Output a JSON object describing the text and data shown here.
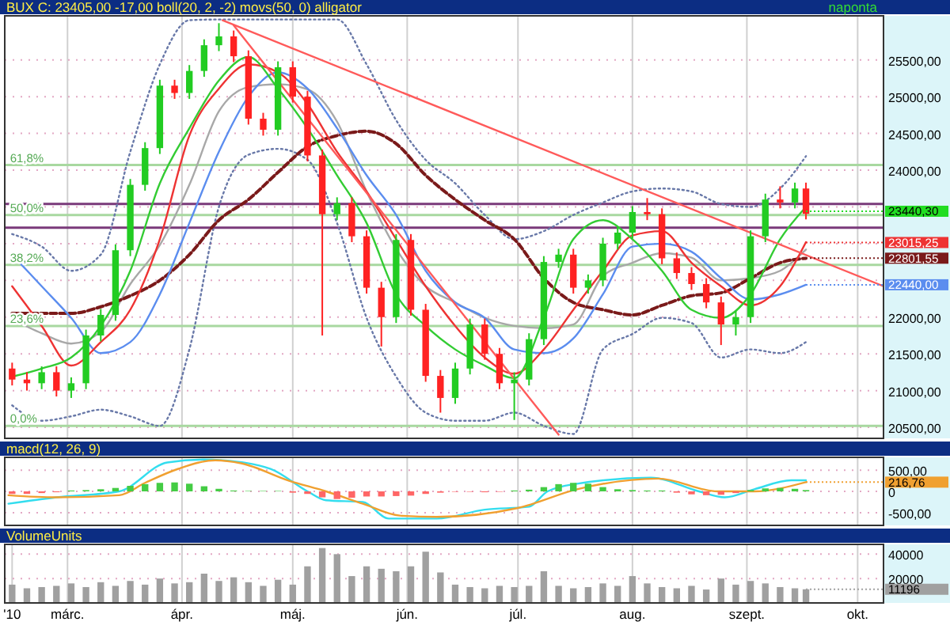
{
  "chart_data": [
    {
      "type": "candlestick",
      "title": "BUX C: 23405,00 -17,00 boll(20, 2, -2) movs(50, 0) alligator",
      "x": [
        "2010-02-14",
        "2010-02-18",
        "2010-02-22",
        "2010-02-26",
        "2010-03-02",
        "2010-03-06",
        "2010-03-10",
        "2010-03-14",
        "2010-03-18",
        "2010-03-22",
        "2010-03-26",
        "2010-03-30",
        "2010-04-03",
        "2010-04-07",
        "2010-04-11",
        "2010-04-15",
        "2010-04-19",
        "2010-04-23",
        "2010-04-27",
        "2010-05-01",
        "2010-05-05",
        "2010-05-09",
        "2010-05-13",
        "2010-05-17",
        "2010-05-21",
        "2010-05-25",
        "2010-05-29",
        "2010-06-02",
        "2010-06-06",
        "2010-06-10",
        "2010-06-14",
        "2010-06-18",
        "2010-06-22",
        "2010-06-26",
        "2010-06-30",
        "2010-07-04",
        "2010-07-08",
        "2010-07-12",
        "2010-07-16",
        "2010-07-20",
        "2010-07-24",
        "2010-07-28",
        "2010-08-01",
        "2010-08-05",
        "2010-08-09",
        "2010-08-13",
        "2010-08-17",
        "2010-08-21",
        "2010-08-25",
        "2010-08-29",
        "2010-09-02",
        "2010-09-06",
        "2010-09-10",
        "2010-09-14",
        "2010-09-17"
      ],
      "ohlc": [
        [
          21300,
          21380,
          21070,
          21150
        ],
        [
          21150,
          21250,
          21000,
          21100
        ],
        [
          21100,
          21330,
          21020,
          21250
        ],
        [
          21250,
          21330,
          20920,
          21000
        ],
        [
          21000,
          21180,
          20900,
          21100
        ],
        [
          21100,
          21830,
          21020,
          21750
        ],
        [
          21750,
          22110,
          21670,
          22030
        ],
        [
          22030,
          22990,
          21950,
          22910
        ],
        [
          22910,
          23880,
          22830,
          23800
        ],
        [
          23800,
          24380,
          23720,
          24300
        ],
        [
          24300,
          25230,
          24220,
          25150
        ],
        [
          25150,
          25230,
          24970,
          25050
        ],
        [
          25050,
          25430,
          24970,
          25350
        ],
        [
          25350,
          25780,
          25270,
          25700
        ],
        [
          25700,
          26000,
          25620,
          25820
        ],
        [
          25820,
          25900,
          25470,
          25550
        ],
        [
          25550,
          25630,
          24620,
          24700
        ],
        [
          24700,
          24780,
          24470,
          24550
        ],
        [
          24550,
          25480,
          24470,
          25400
        ],
        [
          25400,
          25480,
          24920,
          25000
        ],
        [
          25000,
          25080,
          24120,
          24200
        ],
        [
          24200,
          24280,
          21750,
          23400
        ],
        [
          23400,
          23630,
          23320,
          23550
        ],
        [
          23550,
          23630,
          23020,
          23100
        ],
        [
          23100,
          23180,
          22320,
          22400
        ],
        [
          22400,
          22480,
          21600,
          22000
        ],
        [
          22000,
          23130,
          21920,
          23050
        ],
        [
          23050,
          23130,
          22020,
          22100
        ],
        [
          22100,
          22180,
          21120,
          21200
        ],
        [
          21200,
          21280,
          20700,
          20900
        ],
        [
          20900,
          21380,
          20820,
          21300
        ],
        [
          21300,
          21980,
          21220,
          21900
        ],
        [
          21900,
          21980,
          21420,
          21500
        ],
        [
          21500,
          21580,
          21020,
          21100
        ],
        [
          21100,
          21250,
          20600,
          21150
        ],
        [
          21150,
          21780,
          21070,
          21700
        ],
        [
          21700,
          22830,
          21620,
          22750
        ],
        [
          22750,
          22930,
          22670,
          22850
        ],
        [
          22850,
          22930,
          22320,
          22400
        ],
        [
          22400,
          22580,
          22320,
          22500
        ],
        [
          22500,
          23080,
          22420,
          23000
        ],
        [
          23000,
          23230,
          22920,
          23150
        ],
        [
          23150,
          23510,
          23070,
          23430
        ],
        [
          23430,
          23620,
          23320,
          23400
        ],
        [
          23400,
          23480,
          22720,
          22800
        ],
        [
          22800,
          22880,
          22520,
          22600
        ],
        [
          22600,
          22680,
          22370,
          22450
        ],
        [
          22450,
          22530,
          22120,
          22200
        ],
        [
          22200,
          22280,
          21620,
          21900
        ],
        [
          21900,
          22080,
          21750,
          22000
        ],
        [
          22000,
          23180,
          21920,
          23100
        ],
        [
          23100,
          23680,
          23020,
          23600
        ],
        [
          23600,
          23780,
          23480,
          23560
        ],
        [
          23560,
          23830,
          23480,
          23750
        ],
        [
          23750,
          23830,
          23330,
          23405
        ]
      ],
      "series": [
        {
          "type": "line",
          "color": "#6878a8",
          "line_style": "dotted",
          "x": [
            "2010-02-14",
            "2010-02-22",
            "2010-03-02",
            "2010-03-10",
            "2010-03-18",
            "2010-03-26",
            "2010-04-03",
            "2010-04-11",
            "2010-04-19",
            "2010-04-27",
            "2010-05-05",
            "2010-05-13",
            "2010-05-21",
            "2010-05-29",
            "2010-06-06",
            "2010-06-14",
            "2010-06-22",
            "2010-06-30",
            "2010-07-08",
            "2010-07-16",
            "2010-07-24",
            "2010-08-01",
            "2010-08-09",
            "2010-08-17",
            "2010-08-25",
            "2010-09-02",
            "2010-09-10",
            "2010-09-17"
          ],
          "values": [
            23130,
            22960,
            22630,
            22850,
            24250,
            25440,
            26040,
            26050,
            26050,
            26050,
            26050,
            26050,
            25440,
            24680,
            24140,
            23820,
            23390,
            23060,
            23170,
            23390,
            23560,
            23710,
            23750,
            23710,
            23540,
            23500,
            23750,
            24190
          ]
        },
        {
          "type": "line",
          "color": "#a8a8a8",
          "x": [
            "2010-02-14",
            "2010-02-22",
            "2010-03-02",
            "2010-03-10",
            "2010-03-18",
            "2010-03-26",
            "2010-04-03",
            "2010-04-11",
            "2010-04-19",
            "2010-04-27",
            "2010-05-05",
            "2010-05-13",
            "2010-05-21",
            "2010-05-29",
            "2010-06-06",
            "2010-06-14",
            "2010-06-22",
            "2010-06-30",
            "2010-07-08",
            "2010-07-16",
            "2010-07-24",
            "2010-08-01",
            "2010-08-09",
            "2010-08-17",
            "2010-08-25",
            "2010-09-02",
            "2010-09-10",
            "2010-09-17"
          ],
          "values": [
            21970,
            21780,
            21640,
            21800,
            22450,
            22980,
            23800,
            24800,
            25130,
            25170,
            25100,
            24660,
            23710,
            22930,
            22420,
            22200,
            21990,
            21880,
            21850,
            21900,
            22560,
            22740,
            22870,
            22810,
            22500,
            22530,
            22630,
            22920
          ]
        },
        {
          "type": "line",
          "color": "#6878a8",
          "line_style": "dotted",
          "x": [
            "2010-02-14",
            "2010-02-22",
            "2010-03-02",
            "2010-03-10",
            "2010-03-18",
            "2010-03-26",
            "2010-04-03",
            "2010-04-11",
            "2010-04-19",
            "2010-04-27",
            "2010-05-05",
            "2010-05-13",
            "2010-05-21",
            "2010-05-29",
            "2010-06-06",
            "2010-06-14",
            "2010-06-22",
            "2010-06-30",
            "2010-07-08",
            "2010-07-16",
            "2010-07-24",
            "2010-08-01",
            "2010-08-09",
            "2010-08-17",
            "2010-08-25",
            "2010-09-02",
            "2010-09-10",
            "2010-09-17"
          ],
          "values": [
            20800,
            20590,
            20650,
            20740,
            20650,
            20520,
            21560,
            23500,
            24210,
            24290,
            24140,
            23280,
            21990,
            21190,
            20700,
            20590,
            20590,
            20700,
            20520,
            20410,
            21560,
            21770,
            21990,
            21920,
            21450,
            21560,
            21510,
            21660
          ]
        },
        {
          "type": "line",
          "color": "#7a1a1a",
          "line_style": "dashed",
          "x": [
            "2010-02-14",
            "2010-02-22",
            "2010-03-02",
            "2010-03-10",
            "2010-03-18",
            "2010-03-26",
            "2010-04-03",
            "2010-04-11",
            "2010-04-19",
            "2010-04-27",
            "2010-05-05",
            "2010-05-13",
            "2010-05-21",
            "2010-05-29",
            "2010-06-06",
            "2010-06-14",
            "2010-06-22",
            "2010-06-30",
            "2010-07-08",
            "2010-07-16",
            "2010-07-24",
            "2010-08-01",
            "2010-08-09",
            "2010-08-17",
            "2010-08-25",
            "2010-09-02",
            "2010-09-10",
            "2010-09-17"
          ],
          "values": [
            22050,
            22050,
            22050,
            22140,
            22290,
            22500,
            22850,
            23320,
            23600,
            23970,
            24320,
            24470,
            24530,
            24360,
            23930,
            23600,
            23320,
            23060,
            22530,
            22200,
            22100,
            22030,
            22160,
            22290,
            22330,
            22530,
            22740,
            22800
          ]
        },
        {
          "type": "line",
          "color": "#5b8def",
          "x": [
            "2010-02-14",
            "2010-02-22",
            "2010-03-02",
            "2010-03-10",
            "2010-03-18",
            "2010-03-26",
            "2010-04-03",
            "2010-04-11",
            "2010-04-19",
            "2010-04-27",
            "2010-05-05",
            "2010-05-13",
            "2010-05-21",
            "2010-05-29",
            "2010-06-06",
            "2010-06-14",
            "2010-06-22",
            "2010-06-30",
            "2010-07-08",
            "2010-07-16",
            "2010-07-24",
            "2010-08-01",
            "2010-08-09",
            "2010-08-17",
            "2010-08-25",
            "2010-09-02",
            "2010-09-10",
            "2010-09-17"
          ],
          "values": [
            22850,
            22420,
            21990,
            21510,
            21660,
            22310,
            23280,
            24250,
            25000,
            25330,
            25110,
            24570,
            23930,
            23390,
            22630,
            22200,
            21990,
            21560,
            21510,
            21710,
            22310,
            22960,
            23000,
            22890,
            22530,
            22240,
            22310,
            22440
          ]
        },
        {
          "type": "line",
          "color": "#ee3333",
          "x": [
            "2010-02-14",
            "2010-02-22",
            "2010-03-02",
            "2010-03-10",
            "2010-03-18",
            "2010-03-26",
            "2010-04-03",
            "2010-04-11",
            "2010-04-19",
            "2010-04-27",
            "2010-05-05",
            "2010-05-13",
            "2010-05-21",
            "2010-05-29",
            "2010-06-06",
            "2010-06-14",
            "2010-06-22",
            "2010-06-30",
            "2010-07-08",
            "2010-07-16",
            "2010-07-24",
            "2010-08-01",
            "2010-08-09",
            "2010-08-17",
            "2010-08-25",
            "2010-09-02",
            "2010-09-10",
            "2010-09-17"
          ],
          "values": [
            22420,
            21880,
            21340,
            21660,
            22100,
            23060,
            24470,
            25110,
            25440,
            25330,
            24900,
            24250,
            23710,
            23060,
            22420,
            21880,
            21450,
            21230,
            21560,
            22100,
            22630,
            23110,
            23170,
            22740,
            22420,
            22160,
            22420,
            23020
          ]
        },
        {
          "type": "line",
          "color": "#33cc33",
          "x": [
            "2010-02-14",
            "2010-02-22",
            "2010-03-02",
            "2010-03-10",
            "2010-03-18",
            "2010-03-26",
            "2010-04-03",
            "2010-04-11",
            "2010-04-19",
            "2010-04-27",
            "2010-05-05",
            "2010-05-13",
            "2010-05-21",
            "2010-05-29",
            "2010-06-06",
            "2010-06-14",
            "2010-06-22",
            "2010-06-30",
            "2010-07-08",
            "2010-07-16",
            "2010-07-24",
            "2010-08-01",
            "2010-08-09",
            "2010-08-17",
            "2010-08-25",
            "2010-09-02",
            "2010-09-10",
            "2010-09-17"
          ],
          "values": [
            21190,
            21300,
            21450,
            21880,
            22630,
            23820,
            24570,
            25220,
            25540,
            25110,
            24570,
            23930,
            23280,
            22310,
            21880,
            21560,
            21340,
            21170,
            21990,
            23060,
            23320,
            23060,
            22630,
            22100,
            21990,
            22310,
            23060,
            23500
          ]
        },
        {
          "type": "line",
          "color": "#ff5a5a",
          "x": [
            "2010-04-12",
            "2010-10-08"
          ],
          "values": [
            26040,
            22420
          ]
        },
        {
          "type": "line",
          "color": "#ff5a5a",
          "x": [
            "2010-04-15",
            "2010-07-12"
          ],
          "values": [
            25970,
            20400
          ]
        }
      ],
      "xlim": [
        "2010-02-12",
        "2010-10-08"
      ],
      "xticks": [
        {
          "value": "2010-03-01",
          "label": null
        },
        {
          "value": "2010-04-01",
          "label": null
        },
        {
          "value": "2010-05-01",
          "label": null
        },
        {
          "value": "2010-06-01",
          "label": null
        },
        {
          "value": "2010-07-01",
          "label": null
        },
        {
          "value": "2010-08-01",
          "label": null
        },
        {
          "value": "2010-09-01",
          "label": null
        },
        {
          "value": "2010-10-01",
          "label": null
        }
      ],
      "ylim": [
        20350,
        26100
      ],
      "yticks": [
        {
          "value": 20500,
          "label": "20500,00"
        },
        {
          "value": 21000,
          "label": "21000,00"
        },
        {
          "value": 21500,
          "label": "21500,00"
        },
        {
          "value": 22000,
          "label": "22000,00"
        },
        {
          "value": 22500,
          "label": null
        },
        {
          "value": 23000,
          "label": null
        },
        {
          "value": 23500,
          "label": null
        },
        {
          "value": 24000,
          "label": "24000,00"
        },
        {
          "value": 24500,
          "label": "24500,00"
        },
        {
          "value": 25000,
          "label": "25000,00"
        },
        {
          "value": 25500,
          "label": "25500,00"
        }
      ],
      "grid": true,
      "tick_labels": "y",
      "ref_lines": [
        {
          "axis": "y",
          "value": 24070,
          "color": "#a8d8a0"
        },
        {
          "axis": "y",
          "value": 23390,
          "color": "#a8d8a0"
        },
        {
          "axis": "y",
          "value": 22710,
          "color": "#a8d8a0"
        },
        {
          "axis": "y",
          "value": 21880,
          "color": "#a8d8a0"
        },
        {
          "axis": "y",
          "value": 20520,
          "color": "#a8d8a0"
        },
        {
          "axis": "y",
          "value": 23540,
          "color": "#7a3a7a"
        },
        {
          "axis": "y",
          "value": 23216,
          "color": "#7a3a7a"
        }
      ],
      "annotations": [
        "naponta",
        {
          "text": "61,8%",
          "x": "2010-02-13",
          "y": 24070
        },
        {
          "text": "50,0%",
          "x": "2010-02-13",
          "y": 23390
        },
        {
          "text": "38,2%",
          "x": "2010-02-13",
          "y": 22710
        },
        {
          "text": "23,6%",
          "x": "2010-02-13",
          "y": 21880
        },
        {
          "text": "0,0%",
          "x": "2010-02-13",
          "y": 20520
        },
        {
          "text": "23440,30",
          "x": "2010-09-17",
          "y": 23440.3
        },
        {
          "text": "23015,25",
          "x": "2010-09-17",
          "y": 23015.25
        },
        {
          "text": "22801,55",
          "x": "2010-09-17",
          "y": 22801.55
        },
        {
          "text": "22440,00",
          "x": "2010-09-17",
          "y": 22440
        }
      ]
    },
    {
      "type": "line",
      "title": "macd(12, 26, 9)",
      "series": [
        {
          "type": "bar",
          "x": [
            "2010-02-14",
            "2010-02-18",
            "2010-02-22",
            "2010-02-26",
            "2010-03-02",
            "2010-03-06",
            "2010-03-10",
            "2010-03-14",
            "2010-03-18",
            "2010-03-22",
            "2010-03-26",
            "2010-03-30",
            "2010-04-03",
            "2010-04-07",
            "2010-04-11",
            "2010-04-15",
            "2010-04-19",
            "2010-04-23",
            "2010-04-27",
            "2010-05-01",
            "2010-05-05",
            "2010-05-09",
            "2010-05-13",
            "2010-05-17",
            "2010-05-21",
            "2010-05-25",
            "2010-05-29",
            "2010-06-02",
            "2010-06-06",
            "2010-06-10",
            "2010-06-14",
            "2010-06-18",
            "2010-06-22",
            "2010-06-26",
            "2010-06-30",
            "2010-07-04",
            "2010-07-08",
            "2010-07-12",
            "2010-07-16",
            "2010-07-20",
            "2010-07-24",
            "2010-07-28",
            "2010-08-01",
            "2010-08-05",
            "2010-08-09",
            "2010-08-13",
            "2010-08-17",
            "2010-08-21",
            "2010-08-25",
            "2010-08-29",
            "2010-09-02",
            "2010-09-06",
            "2010-09-10",
            "2010-09-14",
            "2010-09-17"
          ],
          "values": [
            -60,
            -60,
            -40,
            -20,
            20,
            30,
            50,
            80,
            130,
            170,
            200,
            210,
            180,
            120,
            60,
            20,
            10,
            10,
            10,
            -30,
            -60,
            -140,
            -180,
            -150,
            -120,
            -120,
            -110,
            -100,
            -60,
            -30,
            -10,
            -10,
            -20,
            -10,
            20,
            40,
            100,
            170,
            200,
            180,
            100,
            50,
            30,
            20,
            20,
            -30,
            -70,
            -90,
            -80,
            -40,
            30,
            70,
            80,
            60,
            30
          ],
          "colors": [
            "#ff6666",
            "#ff6666",
            "#ff6666",
            "#ff6666",
            "#44cc44",
            "#44cc44",
            "#44cc44",
            "#44cc44",
            "#44cc44",
            "#44cc44",
            "#44cc44",
            "#44cc44",
            "#44cc44",
            "#44cc44",
            "#44cc44",
            "#44cc44",
            "#44cc44",
            "#44cc44",
            "#44cc44",
            "#ff6666",
            "#ff6666",
            "#ff6666",
            "#ff6666",
            "#ff6666",
            "#ff6666",
            "#ff6666",
            "#ff6666",
            "#ff6666",
            "#ff6666",
            "#ff6666",
            "#ff6666",
            "#ff6666",
            "#ff6666",
            "#ff6666",
            "#44cc44",
            "#44cc44",
            "#44cc44",
            "#44cc44",
            "#44cc44",
            "#44cc44",
            "#44cc44",
            "#44cc44",
            "#44cc44",
            "#44cc44",
            "#44cc44",
            "#ff6666",
            "#ff6666",
            "#ff6666",
            "#ff6666",
            "#ff6666",
            "#44cc44",
            "#44cc44",
            "#44cc44",
            "#44cc44",
            "#44cc44"
          ]
        },
        {
          "type": "line",
          "color": "#33ddee",
          "x": [
            "2010-02-13",
            "2010-02-26",
            "2010-03-15",
            "2010-03-28",
            "2010-04-07",
            "2010-04-12",
            "2010-04-25",
            "2010-05-05",
            "2010-05-10",
            "2010-05-20",
            "2010-05-27",
            "2010-06-09",
            "2010-06-22",
            "2010-07-04",
            "2010-07-09",
            "2010-07-17",
            "2010-08-06",
            "2010-08-19",
            "2010-08-26",
            "2010-09-03",
            "2010-09-13",
            "2010-09-17"
          ],
          "values": [
            -290,
            -140,
            0,
            680,
            750,
            730,
            530,
            0,
            -210,
            -250,
            -640,
            -640,
            -430,
            -360,
            0,
            180,
            320,
            0,
            -140,
            50,
            260,
            260
          ]
        },
        {
          "type": "line",
          "color": "#f0a030",
          "x": [
            "2010-02-13",
            "2010-02-26",
            "2010-03-15",
            "2010-03-22",
            "2010-03-31",
            "2010-04-10",
            "2010-04-17",
            "2010-04-30",
            "2010-05-10",
            "2010-05-20",
            "2010-05-30",
            "2010-06-09",
            "2010-07-01",
            "2010-07-17",
            "2010-08-08",
            "2010-08-24",
            "2010-09-03",
            "2010-09-17"
          ],
          "values": [
            -90,
            -140,
            -90,
            200,
            530,
            730,
            660,
            250,
            0,
            -290,
            -570,
            -600,
            -390,
            50,
            300,
            0,
            0,
            217
          ]
        }
      ],
      "xlim": [
        "2010-02-12",
        "2010-10-08"
      ],
      "xticks": [
        {
          "value": "2010-03-01",
          "label": null
        },
        {
          "value": "2010-04-01",
          "label": null
        },
        {
          "value": "2010-05-01",
          "label": null
        },
        {
          "value": "2010-06-01",
          "label": null
        },
        {
          "value": "2010-07-01",
          "label": null
        },
        {
          "value": "2010-08-01",
          "label": null
        },
        {
          "value": "2010-09-01",
          "label": null
        },
        {
          "value": "2010-10-01",
          "label": null
        }
      ],
      "ylim": [
        -800,
        800
      ],
      "yticks": [
        {
          "value": 500,
          "label": "500,00"
        },
        0,
        {
          "value": -500,
          "label": "-500,00"
        }
      ],
      "grid": true,
      "tick_labels": "y",
      "annotations": [
        {
          "text": "216,76",
          "x": "2010-09-17",
          "y": 216.76
        }
      ]
    },
    {
      "type": "bar",
      "title": "VolumeUnits",
      "color": "#a0a0a0",
      "x": [
        "2010-02-14",
        "2010-02-18",
        "2010-02-22",
        "2010-02-26",
        "2010-03-02",
        "2010-03-06",
        "2010-03-10",
        "2010-03-14",
        "2010-03-18",
        "2010-03-22",
        "2010-03-26",
        "2010-03-30",
        "2010-04-03",
        "2010-04-07",
        "2010-04-11",
        "2010-04-15",
        "2010-04-19",
        "2010-04-23",
        "2010-04-27",
        "2010-05-01",
        "2010-05-05",
        "2010-05-09",
        "2010-05-13",
        "2010-05-17",
        "2010-05-21",
        "2010-05-25",
        "2010-05-29",
        "2010-06-02",
        "2010-06-06",
        "2010-06-10",
        "2010-06-14",
        "2010-06-18",
        "2010-06-22",
        "2010-06-26",
        "2010-06-30",
        "2010-07-04",
        "2010-07-08",
        "2010-07-12",
        "2010-07-16",
        "2010-07-20",
        "2010-07-24",
        "2010-07-28",
        "2010-08-01",
        "2010-08-05",
        "2010-08-09",
        "2010-08-13",
        "2010-08-17",
        "2010-08-21",
        "2010-08-25",
        "2010-08-29",
        "2010-09-02",
        "2010-09-06",
        "2010-09-10",
        "2010-09-14",
        "2010-09-17"
      ],
      "values": [
        15000,
        12000,
        13000,
        14000,
        16000,
        13000,
        17000,
        14000,
        18000,
        15000,
        20000,
        16000,
        17000,
        24000,
        18000,
        21000,
        17000,
        14000,
        19000,
        15000,
        30000,
        45000,
        40000,
        22000,
        30000,
        28000,
        26000,
        30000,
        42000,
        25000,
        15000,
        13000,
        12000,
        14000,
        13000,
        14000,
        26000,
        14000,
        12000,
        13000,
        16000,
        14000,
        22000,
        16000,
        13000,
        12000,
        14000,
        11000,
        20000,
        15000,
        18000,
        16000,
        13000,
        12000,
        11196
      ],
      "xlim": [
        "2010-02-12",
        "2010-10-08"
      ],
      "xticks": [
        {
          "value": "2010-02-14",
          "label": "'10"
        },
        {
          "value": "2010-03-01",
          "label": "márc."
        },
        {
          "value": "2010-04-01",
          "label": "ápr."
        },
        {
          "value": "2010-05-01",
          "label": "máj."
        },
        {
          "value": "2010-06-01",
          "label": "jún."
        },
        {
          "value": "2010-07-01",
          "label": "júl."
        },
        {
          "value": "2010-08-01",
          "label": "aug."
        },
        {
          "value": "2010-09-01",
          "label": "szept."
        },
        {
          "value": "2010-10-01",
          "label": "okt."
        }
      ],
      "ylim": [
        0,
        48000
      ],
      "yticks": [
        20000,
        40000
      ],
      "grid": true,
      "annotations": [
        {
          "text": "11196",
          "x": "2010-09-17",
          "y": 11196
        }
      ]
    }
  ]
}
